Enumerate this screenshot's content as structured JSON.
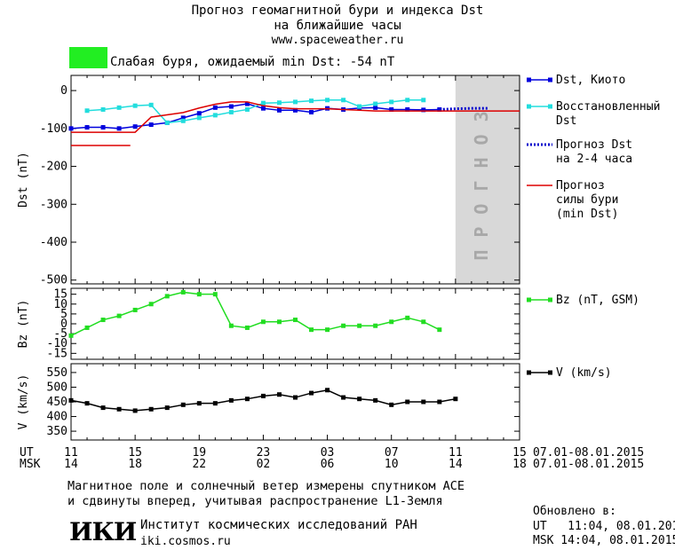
{
  "header": {
    "title_line1": "Прогноз геомагнитной бури и индекса Dst",
    "title_line2": "на ближайшие часы",
    "url": "www.spaceweather.ru",
    "storm_status": "Слабая буря, ожидаемый min Dst: -54 nT",
    "storm_color": "#22ee22"
  },
  "chart_data": [
    {
      "type": "line",
      "ylabel": "Dst (nT)",
      "ylim": [
        -510,
        40
      ],
      "yticks": [
        0,
        -100,
        -200,
        -300,
        -400,
        -500
      ],
      "x_range": [
        11,
        39
      ],
      "forecast_region": {
        "x": [
          35,
          39
        ],
        "label": "ПРОГНОЗ",
        "color": "#d8d8d8"
      },
      "series": [
        {
          "name": "Dst, Киото",
          "color": "#0000dd",
          "x": [
            11,
            12,
            13,
            14,
            15,
            16,
            17,
            18,
            19,
            20,
            21,
            22,
            23,
            24,
            25,
            26,
            27,
            28,
            29,
            30,
            31,
            32,
            33,
            34
          ],
          "values": [
            -100,
            -97,
            -97,
            -100,
            -95,
            -90,
            -85,
            -72,
            -60,
            -45,
            -42,
            -35,
            -47,
            -52,
            -52,
            -57,
            -47,
            -50,
            -46,
            -45,
            -50,
            -50,
            -51,
            -50
          ]
        },
        {
          "name_line1": "Восстановленный",
          "name_line2": "Dst",
          "color": "#22dddd",
          "x": [
            12,
            13,
            14,
            15,
            16,
            17,
            18,
            19,
            20,
            21,
            22,
            23,
            24,
            25,
            26,
            27,
            28,
            29,
            30,
            31,
            32,
            33
          ],
          "values": [
            -53,
            -50,
            -45,
            -40,
            -38,
            -85,
            -80,
            -72,
            -65,
            -57,
            -50,
            -33,
            -32,
            -30,
            -27,
            -25,
            -25,
            -42,
            -35,
            -30,
            -25,
            -25
          ]
        },
        {
          "name_line1": "Прогноз Dst",
          "name_line2": "на 2-4 часа",
          "color": "#0000cc",
          "x": [
            34,
            35,
            36,
            37
          ],
          "values": [
            -50,
            -48,
            -47,
            -47
          ]
        },
        {
          "name_line1": "Прогноз",
          "name_line2": "силы бури",
          "name_line3": "(min Dst)",
          "color": "#dd0000",
          "x": [
            11,
            14.7,
            15,
            15.5,
            16,
            18,
            19,
            20,
            21,
            22,
            23,
            24,
            25,
            26,
            27,
            28,
            29,
            30,
            31,
            32,
            33,
            34,
            35,
            36,
            37,
            38,
            39
          ],
          "values": [
            -110,
            -110,
            -110,
            -90,
            -70,
            -58,
            -46,
            -36,
            -30,
            -30,
            -40,
            -45,
            -48,
            -48,
            -48,
            -50,
            -52,
            -54,
            -54,
            -54,
            -54,
            -54,
            -54,
            -54,
            -54,
            -54,
            -54
          ]
        },
        {
          "name": "",
          "color": "#dd0000",
          "x": [
            11,
            14.7
          ],
          "values": [
            -145,
            -145
          ]
        }
      ]
    },
    {
      "type": "line",
      "ylabel": "Bz (nT)",
      "ylim": [
        -18,
        18
      ],
      "yticks": [
        15,
        10,
        5,
        0,
        -5,
        -10,
        -15
      ],
      "series": [
        {
          "name": "Bz (nT, GSM)",
          "color": "#22dd22",
          "x": [
            11,
            12,
            13,
            14,
            15,
            16,
            17,
            18,
            19,
            20,
            21,
            22,
            23,
            24,
            25,
            26,
            27,
            28,
            29,
            30,
            31,
            32,
            33,
            34
          ],
          "values": [
            -6,
            -2,
            2,
            4,
            7,
            10,
            14,
            16,
            15,
            15,
            -1,
            -2,
            1,
            1,
            2,
            -3,
            -3,
            -1,
            -1,
            -1,
            1,
            3,
            1,
            -3
          ]
        }
      ]
    },
    {
      "type": "line",
      "ylabel": "V (km/s)",
      "ylim": [
        320,
        580
      ],
      "yticks": [
        550,
        500,
        450,
        400,
        350
      ],
      "series": [
        {
          "name": "V (km/s)",
          "color": "#000000",
          "x": [
            11,
            12,
            13,
            14,
            15,
            16,
            17,
            18,
            19,
            20,
            21,
            22,
            23,
            24,
            25,
            26,
            27,
            28,
            29,
            30,
            31,
            32,
            33,
            34,
            35
          ],
          "values": [
            455,
            445,
            430,
            425,
            420,
            425,
            430,
            440,
            445,
            445,
            455,
            460,
            470,
            475,
            465,
            480,
            490,
            465,
            460,
            455,
            440,
            450,
            450,
            450,
            460
          ]
        }
      ]
    }
  ],
  "time_axis": {
    "ut_label": "UT",
    "msk_label": "MSK",
    "ut_ticks": [
      "11",
      "15",
      "19",
      "23",
      "03",
      "07",
      "11",
      "15"
    ],
    "msk_ticks": [
      "14",
      "18",
      "22",
      "02",
      "06",
      "10",
      "14",
      "18"
    ],
    "date_range_ut": "07.01-08.01.2015",
    "date_range_msk": "07.01-08.01.2015"
  },
  "footer": {
    "note_line1": "Магнитное поле и солнечный ветер измерены спутником ACE",
    "note_line2": "и сдвинуты вперед, учитывая распространение L1-Земля",
    "logo": "ИКИ",
    "institute": "Институт космических исследований РАН",
    "institute_url": "iki.cosmos.ru",
    "updated_label": "Обновлено в:",
    "updated_ut": "UT   11:04, 08.01.2015",
    "updated_msk": "MSK 14:04, 08.01.2015"
  }
}
